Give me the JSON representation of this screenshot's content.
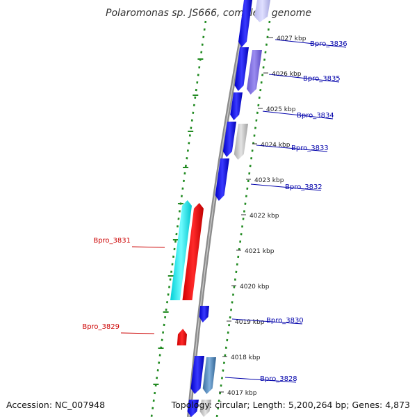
{
  "title": "Polaromonas sp. JS666, complete genome",
  "footer": {
    "accession": "Accession: NC_007948",
    "topology": "Topology: circular; Length: 5,200,264 bp; Genes: 4,873"
  },
  "colors": {
    "backbone": "#8c8c8c",
    "scale_ring": "#228b22",
    "forward_gene": "#1a1aff",
    "reverse_gene": "#ff0000",
    "forward_label": "#0000aa",
    "reverse_label": "#cc0000"
  },
  "ticks": [
    {
      "label": "4027 kbp"
    },
    {
      "label": "4026 kbp"
    },
    {
      "label": "4025 kbp"
    },
    {
      "label": "4024 kbp"
    },
    {
      "label": "4023 kbp"
    },
    {
      "label": "4022 kbp"
    },
    {
      "label": "4021 kbp"
    },
    {
      "label": "4020 kbp"
    },
    {
      "label": "4019 kbp"
    },
    {
      "label": "4018 kbp"
    },
    {
      "label": "4017 kbp"
    }
  ],
  "genes": [
    {
      "label": "Bpro_3836",
      "strand": "forward"
    },
    {
      "label": "Bpro_3835",
      "strand": "forward"
    },
    {
      "label": "Bpro_3834",
      "strand": "forward"
    },
    {
      "label": "Bpro_3833",
      "strand": "forward"
    },
    {
      "label": "Bpro_3832",
      "strand": "forward"
    },
    {
      "label": "Bpro_3831",
      "strand": "reverse"
    },
    {
      "label": "Bpro_3830",
      "strand": "forward"
    },
    {
      "label": "Bpro_3829",
      "strand": "reverse"
    },
    {
      "label": "Bpro_3828",
      "strand": "forward"
    }
  ]
}
